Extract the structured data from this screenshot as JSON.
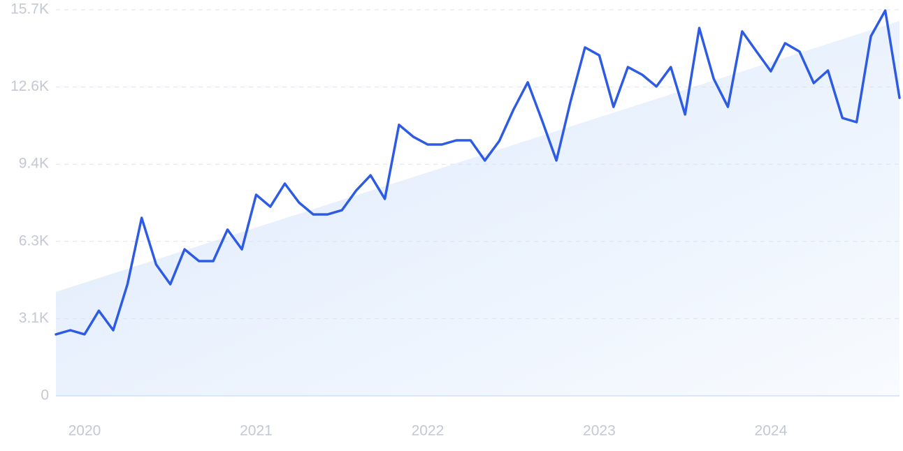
{
  "chart_data": {
    "type": "line",
    "x": [
      2019.833,
      2019.917,
      2020,
      2020.083,
      2020.167,
      2020.25,
      2020.333,
      2020.417,
      2020.5,
      2020.583,
      2020.667,
      2020.75,
      2020.833,
      2020.917,
      2021,
      2021.083,
      2021.167,
      2021.25,
      2021.333,
      2021.417,
      2021.5,
      2021.583,
      2021.667,
      2021.75,
      2021.833,
      2021.917,
      2022,
      2022.083,
      2022.167,
      2022.25,
      2022.333,
      2022.417,
      2022.5,
      2022.583,
      2022.667,
      2022.75,
      2022.833,
      2022.917,
      2023,
      2023.083,
      2023.167,
      2023.25,
      2023.333,
      2023.417,
      2023.5,
      2023.583,
      2023.667,
      2023.75,
      2023.833,
      2023.917,
      2024,
      2024.083,
      2024.167,
      2024.25,
      2024.333,
      2024.417,
      2024.5,
      2024.583,
      2024.667,
      2024.75
    ],
    "values": [
      2500,
      2670,
      2500,
      3460,
      2670,
      4540,
      7240,
      5340,
      4540,
      5960,
      5480,
      5480,
      6760,
      5960,
      8180,
      7690,
      8630,
      7860,
      7380,
      7380,
      7550,
      8350,
      8970,
      8010,
      11020,
      10530,
      10220,
      10220,
      10390,
      10390,
      9570,
      10360,
      11640,
      12750,
      11190,
      9570,
      11980,
      14170,
      13850,
      11750,
      13370,
      13060,
      12580,
      13370,
      11440,
      14960,
      12890,
      11750,
      14820,
      14000,
      13200,
      14340,
      14000,
      12720,
      13230,
      11300,
      11130,
      14620,
      15670,
      12120
    ],
    "color": "#2d5be3",
    "trend": [
      4230,
      15250
    ],
    "xlim": [
      2019.833,
      2024.75
    ],
    "xticks": [
      2020,
      2021,
      2022,
      2023,
      2024
    ],
    "ylim": [
      0,
      15700
    ],
    "yticks": [
      0,
      {
        "value": 3140,
        "label": "3.1K"
      },
      {
        "value": 6280,
        "label": "6.3K"
      },
      {
        "value": 9420,
        "label": "9.4K"
      },
      {
        "value": 12560,
        "label": "12.6K"
      },
      {
        "value": 15700,
        "label": "15.7K"
      }
    ],
    "grid": true
  }
}
